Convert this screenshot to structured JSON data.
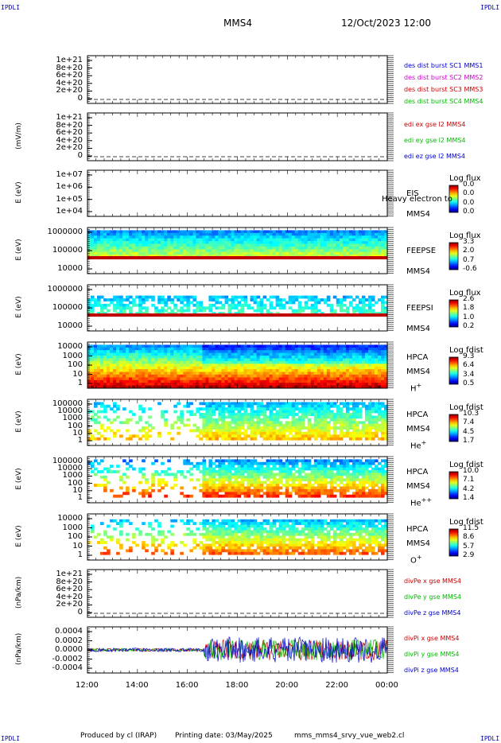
{
  "header": {
    "corner_left_top": "IPDLI",
    "corner_right_top": "IPDLI",
    "corner_left_bottom": "IPDLI",
    "corner_right_bottom": "IPDLI",
    "spacecraft": "MMS4",
    "datetime": "12/Oct/2023 12:00"
  },
  "footer": {
    "produced_by": "Produced by cl (IRAP)",
    "printing_date": "Printing date: 03/May/2025",
    "filename": "mms_mms4_srvy_vue_web2.cl"
  },
  "chart_data": {
    "type": "stacked-timeseries",
    "x_ticks": [
      "12:00",
      "14:00",
      "16:00",
      "18:00",
      "20:00",
      "22:00",
      "00:00"
    ],
    "panels": [
      {
        "id": "des-dist",
        "type": "line",
        "ylabel": "",
        "y_ticks": [
          "1e+21",
          "8e+20",
          "6e+20",
          "4e+20",
          "2e+20",
          "0"
        ],
        "legend": [
          {
            "name": "des dist burst SC1 MMS1",
            "color": "#0000cc"
          },
          {
            "name": "des dist burst SC2 MMS2",
            "color": "#cc00cc"
          },
          {
            "name": "des dist burst SC3 MMS3",
            "color": "#cc0000"
          },
          {
            "name": "des dist burst SC4 MMS4",
            "color": "#00bb00"
          }
        ]
      },
      {
        "id": "edi",
        "type": "line",
        "ylabel": "(mV/m)",
        "y_ticks": [
          "1e+21",
          "8e+20",
          "6e+20",
          "4e+20",
          "2e+20",
          "0"
        ],
        "legend": [
          {
            "name": "edi ex gse l2 MMS4",
            "color": "#cc0000"
          },
          {
            "name": "edi ey gse l2 MMS4",
            "color": "#00bb00"
          },
          {
            "name": "edi ez gse l2 MMS4",
            "color": "#0000cc"
          }
        ]
      },
      {
        "id": "eis",
        "type": "heatmap",
        "ylabel": "E (eV)",
        "y_ticks": [
          "1e+07",
          "1e+06",
          "1e+05",
          "1e+04"
        ],
        "labels": [
          "EIS",
          "MMS4"
        ],
        "overlay_text": "Heavy electron to",
        "colorbar": {
          "title": "Log flux",
          "ticks": [
            "0.0",
            "0.0",
            "0.0",
            "0.0"
          ]
        }
      },
      {
        "id": "feeps-e",
        "type": "heatmap",
        "ylabel": "E (eV)",
        "y_ticks": [
          "1000000",
          "100000",
          "10000"
        ],
        "labels": [
          "FEEPSE",
          "MMS4"
        ],
        "colorbar": {
          "title": "Log flux",
          "ticks": [
            "3.3",
            "2.0",
            "0.7",
            "-0.6"
          ]
        }
      },
      {
        "id": "feeps-i",
        "type": "heatmap",
        "ylabel": "E (eV)",
        "y_ticks": [
          "1000000",
          "100000",
          "10000"
        ],
        "labels": [
          "FEEPSI",
          "MMS4"
        ],
        "colorbar": {
          "title": "Log flux",
          "ticks": [
            "2.6",
            "1.8",
            "1.0",
            "0.2"
          ]
        }
      },
      {
        "id": "hpca-h",
        "type": "heatmap",
        "ylabel": "E (eV)",
        "y_ticks": [
          "10000",
          "1000",
          "100",
          "10",
          "1"
        ],
        "labels": [
          "HPCA",
          "MMS4"
        ],
        "species": "H",
        "species_sup": "+",
        "colorbar": {
          "title": "Log fdist",
          "ticks": [
            "9.3",
            "6.4",
            "3.4",
            "0.5"
          ]
        }
      },
      {
        "id": "hpca-he",
        "type": "heatmap",
        "ylabel": "E (eV)",
        "y_ticks": [
          "100000",
          "10000",
          "1000",
          "100",
          "10",
          "1"
        ],
        "labels": [
          "HPCA",
          "MMS4"
        ],
        "species": "He",
        "species_sup": "+",
        "colorbar": {
          "title": "Log fdist",
          "ticks": [
            "10.3",
            "7.4",
            "4.5",
            "1.7"
          ]
        }
      },
      {
        "id": "hpca-hepp",
        "type": "heatmap",
        "ylabel": "E (eV)",
        "y_ticks": [
          "100000",
          "10000",
          "1000",
          "100",
          "10",
          "1"
        ],
        "labels": [
          "HPCA",
          "MMS4"
        ],
        "species": "He",
        "species_sup": "++",
        "colorbar": {
          "title": "Log fdist",
          "ticks": [
            "10.0",
            "7.1",
            "4.2",
            "1.4"
          ]
        }
      },
      {
        "id": "hpca-o",
        "type": "heatmap",
        "ylabel": "E (eV)",
        "y_ticks": [
          "10000",
          "1000",
          "100",
          "10",
          "1"
        ],
        "labels": [
          "HPCA",
          "MMS4"
        ],
        "species": "O",
        "species_sup": "+",
        "colorbar": {
          "title": "Log fdist",
          "ticks": [
            "11.5",
            "8.6",
            "5.7",
            "2.9"
          ]
        }
      },
      {
        "id": "divpe",
        "type": "line",
        "ylabel": "(nPa/km)",
        "y_ticks": [
          "1e+21",
          "8e+20",
          "6e+20",
          "4e+20",
          "2e+20",
          "0"
        ],
        "legend": [
          {
            "name": "divPe x gse MMS4",
            "color": "#cc0000"
          },
          {
            "name": "divPe y gse MMS4",
            "color": "#00bb00"
          },
          {
            "name": "divPe z gse MMS4",
            "color": "#0000cc"
          }
        ]
      },
      {
        "id": "divpi",
        "type": "line",
        "ylabel": "(nPa/km)",
        "y_ticks": [
          "0.0004",
          "0.0002",
          "0.0000",
          "-0.0002",
          "-0.0004"
        ],
        "legend": [
          {
            "name": "divPi x gse MMS4",
            "color": "#cc0000"
          },
          {
            "name": "divPi y gse MMS4",
            "color": "#00bb00"
          },
          {
            "name": "divPi z gse MMS4",
            "color": "#0000cc"
          }
        ]
      }
    ]
  }
}
